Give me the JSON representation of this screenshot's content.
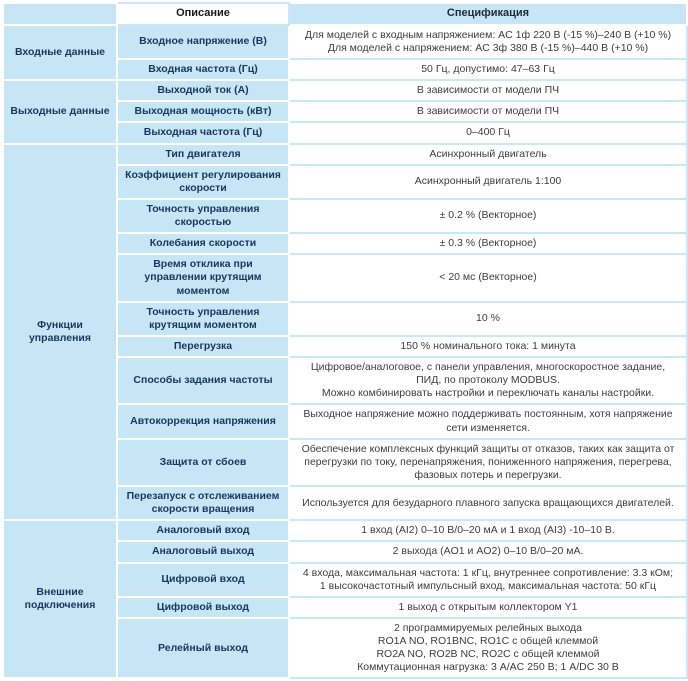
{
  "header": {
    "description": "Описание",
    "specification": "Спецификация"
  },
  "colors": {
    "cell_blue": "#c7e6f5",
    "grid_blue": "#c9e7f6",
    "label_text": "#17375e",
    "spec_text": "#3d3d3d"
  },
  "groups": [
    {
      "name": "Входные данные",
      "rows": [
        {
          "desc": "Входное напряжение (В)",
          "spec": "Для моделей с входным напряжением: AC 1ф 220 В (-15 %)–240 В (+10 %)\nДля моделей с напряжением: AC 3ф 380 В (-15 %)–440 В (+10 %)"
        },
        {
          "desc": "Входная частота (Гц)",
          "spec": "50 Гц, допустимо: 47–63 Гц"
        }
      ]
    },
    {
      "name": "Выходные данные",
      "rows": [
        {
          "desc": "Выходной ток (А)",
          "spec": "В зависимости от модели ПЧ"
        },
        {
          "desc": "Выходная мощность (кВт)",
          "spec": "В зависимости от модели ПЧ"
        },
        {
          "desc": "Выходная частота (Гц)",
          "spec": "0–400 Гц"
        }
      ]
    },
    {
      "name": "Функции управления",
      "rows": [
        {
          "desc": "Тип двигателя",
          "spec": "Асинхронный двигатель"
        },
        {
          "desc": "Коэффициент регулирования скорости",
          "spec": "Асинхронный двигатель 1:100"
        },
        {
          "desc": "Точность управления скоростью",
          "spec": "± 0.2 % (Векторное)"
        },
        {
          "desc": "Колебания скорости",
          "spec": "± 0.3 % (Векторное)"
        },
        {
          "desc": "Время отклика при управлении крутящим моментом",
          "spec": "< 20 мс (Векторное)"
        },
        {
          "desc": "Точность управления крутящим моментом",
          "spec": "10 %"
        },
        {
          "desc": "Перегрузка",
          "spec": "150 % номинального тока: 1 минута"
        },
        {
          "desc": "Способы задания частоты",
          "spec": "Цифровое/аналоговое, с панели управления, многоскоростное задание,\nПИД, по протоколу MODBUS.\nМожно комбинировать настройки и переключать каналы настройки."
        },
        {
          "desc": "Автокоррекция напряжения",
          "spec": "Выходное напряжение можно поддерживать постоянным, хотя напряжение\nсети изменяется."
        },
        {
          "desc": "Защита от сбоев",
          "spec": "Обеспечение комплексных функций защиты от отказов, таких как защита от\nперегрузки по току, перенапряжения, пониженного напряжения, перегрева,\nфазовых потерь и перегрузки."
        },
        {
          "desc": "Перезапуск с отслеживанием скорости вращения",
          "spec": "Используется для безударного плавного запуска вращающихся двигателей."
        }
      ]
    },
    {
      "name": "Внешние подключения",
      "rows": [
        {
          "desc": "Аналоговый вход",
          "spec": "1 вход (AI2) 0–10 В/0–20 мА и 1 вход (AI3) -10–10 В."
        },
        {
          "desc": "Аналоговый выход",
          "spec": "2 выхода (AO1 и AO2) 0–10 В/0–20 мА."
        },
        {
          "desc": "Цифровой вход",
          "spec": "4 входа, максимальная частота: 1 кГц, внутреннее сопротивление: 3.3 кОм;\n1 высокочастотный импульсный вход, максимальная частота: 50 кГц"
        },
        {
          "desc": "Цифровой выход",
          "spec": "1 выход с открытым коллектором Y1"
        },
        {
          "desc": "Релейный выход",
          "spec": "2 программируемых релейных выхода\nRO1A NO, RO1BNC, RO1C с общей клеммой\nRO2A NO, RO2B NC, RO2C с общей клеммой\nКоммутационная нагрузка: 3 А/AC 250 В; 1 А/DC 30 В"
        }
      ]
    }
  ]
}
